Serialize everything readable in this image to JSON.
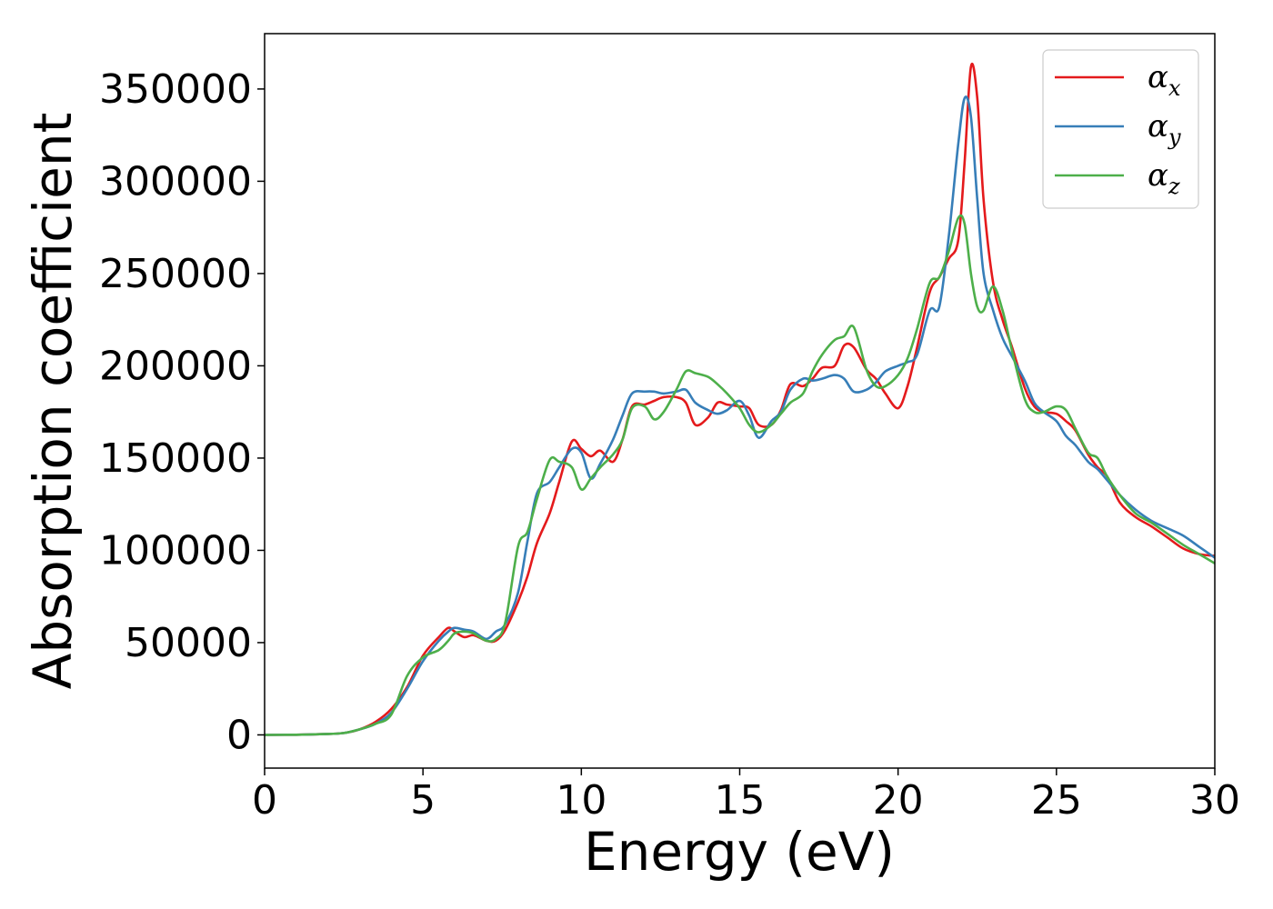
{
  "chart_data": {
    "type": "line",
    "title": "",
    "xlabel": "Energy (eV)",
    "ylabel": "Absorption coefficient",
    "xlim": [
      0,
      30
    ],
    "ylim": [
      -18000,
      380000
    ],
    "xticks": [
      0,
      5,
      10,
      15,
      20,
      25,
      30
    ],
    "yticks": [
      0,
      50000,
      100000,
      150000,
      200000,
      250000,
      300000,
      350000
    ],
    "grid": false,
    "legend_position": "top-right",
    "series": [
      {
        "name": "α_x",
        "legend_base": "α",
        "legend_sub": "x",
        "color": "#e41a1c",
        "x": [
          0,
          1,
          2,
          2.5,
          3,
          3.5,
          4,
          4.5,
          5,
          5.5,
          5.8,
          6,
          6.3,
          6.6,
          7,
          7.3,
          7.6,
          8,
          8.3,
          8.6,
          9,
          9.3,
          9.7,
          10,
          10.3,
          10.6,
          11,
          11.3,
          11.6,
          12,
          12.3,
          12.6,
          13,
          13.3,
          13.6,
          14,
          14.3,
          14.6,
          15,
          15.3,
          15.6,
          16,
          16.3,
          16.6,
          17,
          17.3,
          17.6,
          18,
          18.3,
          18.6,
          19,
          19.3,
          19.6,
          20,
          20.3,
          20.6,
          21,
          21.3,
          21.6,
          21.9,
          22.1,
          22.3,
          22.5,
          22.7,
          23,
          23.3,
          23.6,
          24,
          24.3,
          24.6,
          25,
          25.3,
          25.6,
          26,
          26.3,
          26.6,
          27,
          27.5,
          28,
          28.5,
          29,
          29.5,
          30
        ],
        "y": [
          0,
          100,
          500,
          1000,
          3000,
          7000,
          14000,
          26000,
          43000,
          53000,
          58000,
          56000,
          53000,
          54000,
          51000,
          51000,
          57000,
          72000,
          86000,
          104000,
          120000,
          137000,
          159000,
          155000,
          151000,
          154000,
          148000,
          160000,
          178000,
          179000,
          181000,
          183000,
          183000,
          180000,
          168000,
          172000,
          180000,
          179000,
          178000,
          177000,
          168000,
          168000,
          176000,
          190000,
          189000,
          193000,
          199000,
          200000,
          211000,
          210000,
          198000,
          193000,
          185000,
          177000,
          189000,
          210000,
          240000,
          248000,
          258000,
          268000,
          310000,
          362000,
          345000,
          290000,
          245000,
          225000,
          210000,
          188000,
          178000,
          175000,
          174000,
          170000,
          165000,
          152000,
          145000,
          140000,
          126000,
          118000,
          113000,
          107000,
          101000,
          98000,
          97000
        ]
      },
      {
        "name": "α_y",
        "legend_base": "α",
        "legend_sub": "y",
        "color": "#377eb8",
        "x": [
          0,
          1,
          2,
          2.5,
          3,
          3.5,
          4,
          4.5,
          5,
          5.5,
          5.8,
          6,
          6.3,
          6.6,
          7,
          7.3,
          7.6,
          8,
          8.3,
          8.6,
          9,
          9.3,
          9.7,
          10,
          10.3,
          10.6,
          11,
          11.3,
          11.6,
          12,
          12.3,
          12.6,
          13,
          13.3,
          13.6,
          14,
          14.3,
          14.6,
          15,
          15.3,
          15.6,
          16,
          16.3,
          16.6,
          17,
          17.3,
          17.6,
          18,
          18.3,
          18.6,
          19,
          19.3,
          19.6,
          20,
          20.3,
          20.6,
          21,
          21.3,
          21.6,
          21.9,
          22.1,
          22.3,
          22.5,
          22.7,
          23,
          23.3,
          23.6,
          24,
          24.3,
          24.6,
          25,
          25.3,
          25.6,
          26,
          26.3,
          26.6,
          27,
          27.5,
          28,
          28.5,
          29,
          29.5,
          30
        ],
        "y": [
          0,
          100,
          500,
          1000,
          3000,
          6000,
          12000,
          25000,
          40000,
          51000,
          56000,
          58000,
          57000,
          56000,
          52000,
          56000,
          60000,
          77000,
          105000,
          131000,
          137000,
          145000,
          155000,
          153000,
          139000,
          147000,
          160000,
          173000,
          185000,
          186000,
          186000,
          185000,
          186000,
          187000,
          180000,
          176000,
          174000,
          176000,
          181000,
          173000,
          161000,
          170000,
          175000,
          187000,
          193000,
          192000,
          193000,
          195000,
          193000,
          186000,
          187000,
          191000,
          197000,
          200000,
          202000,
          206000,
          230000,
          232000,
          270000,
          320000,
          345000,
          335000,
          290000,
          250000,
          230000,
          215000,
          205000,
          192000,
          180000,
          175000,
          170000,
          162000,
          157000,
          148000,
          144000,
          138000,
          130000,
          122000,
          116000,
          112000,
          108000,
          102000,
          96000
        ]
      },
      {
        "name": "α_z",
        "legend_base": "α",
        "legend_sub": "z",
        "color": "#4daf4a",
        "x": [
          0,
          1,
          2,
          2.5,
          3,
          3.5,
          4,
          4.5,
          5,
          5.5,
          5.8,
          6,
          6.3,
          6.6,
          7,
          7.3,
          7.6,
          8,
          8.3,
          8.6,
          9,
          9.3,
          9.7,
          10,
          10.3,
          10.6,
          11,
          11.3,
          11.6,
          12,
          12.3,
          12.6,
          13,
          13.3,
          13.6,
          14,
          14.3,
          14.6,
          15,
          15.3,
          15.6,
          16,
          16.3,
          16.6,
          17,
          17.3,
          17.6,
          18,
          18.3,
          18.6,
          19,
          19.3,
          19.6,
          20,
          20.3,
          20.6,
          21,
          21.3,
          21.6,
          21.9,
          22.1,
          22.3,
          22.5,
          22.7,
          23,
          23.3,
          23.6,
          24,
          24.3,
          24.6,
          25,
          25.3,
          25.6,
          26,
          26.3,
          26.6,
          27,
          27.5,
          28,
          28.5,
          29,
          29.5,
          30
        ],
        "y": [
          0,
          100,
          500,
          1000,
          3000,
          6000,
          11000,
          32000,
          42000,
          46000,
          51000,
          55000,
          56000,
          55000,
          51000,
          52000,
          61000,
          102000,
          110000,
          128000,
          149000,
          148000,
          145000,
          133000,
          139000,
          145000,
          152000,
          160000,
          177000,
          178000,
          171000,
          175000,
          187000,
          197000,
          196000,
          194000,
          190000,
          185000,
          177000,
          168000,
          164000,
          168000,
          174000,
          180000,
          185000,
          197000,
          206000,
          214000,
          216000,
          221000,
          198000,
          189000,
          189000,
          195000,
          204000,
          220000,
          245000,
          248000,
          262000,
          280000,
          277000,
          250000,
          232000,
          230000,
          243000,
          230000,
          208000,
          182000,
          175000,
          175000,
          178000,
          176000,
          166000,
          153000,
          150000,
          140000,
          130000,
          120000,
          115000,
          109000,
          103000,
          98000,
          93000
        ]
      }
    ]
  }
}
